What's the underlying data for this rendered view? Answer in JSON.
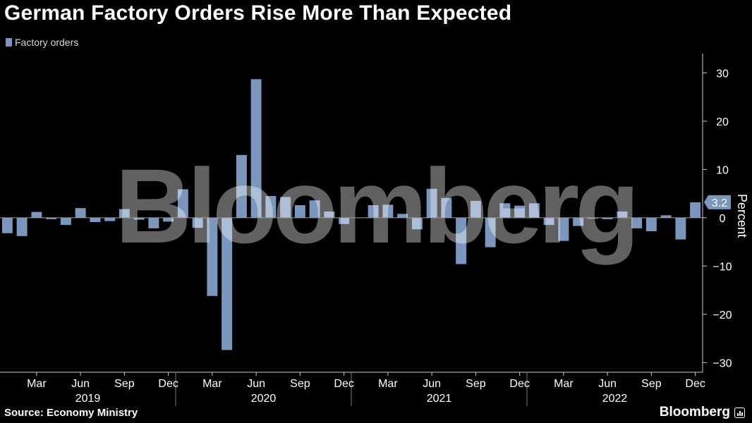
{
  "title": "German Factory Orders Rise More Than Expected",
  "legend_label": "Factory orders",
  "source": "Source: Economy Ministry",
  "brand": "Bloomberg",
  "watermark": "Bloomberg",
  "colors": {
    "bar": "#7b97bd",
    "background": "#000000",
    "axis": "#cccccc",
    "text": "#ffffff"
  },
  "chart_data": {
    "type": "bar",
    "title": "German Factory Orders Rise More Than Expected",
    "ylabel": "Percent",
    "ylim": [
      -32,
      34
    ],
    "yticks": [
      30,
      20,
      10,
      0,
      -10,
      -20,
      -30
    ],
    "series": [
      {
        "name": "Factory orders",
        "values": [
          -3.2,
          -3.8,
          1.2,
          -0.3,
          -1.5,
          2.0,
          -0.9,
          -0.7,
          1.8,
          -0.4,
          -2.2,
          -0.8,
          5.9,
          -2.1,
          -16.2,
          -27.4,
          13.0,
          28.7,
          4.5,
          4.3,
          2.6,
          3.6,
          1.3,
          -1.3,
          0.0,
          2.6,
          2.7,
          0.8,
          -2.4,
          6.0,
          4.1,
          -9.6,
          3.5,
          -6.1,
          3.0,
          2.5,
          3.0,
          -1.5,
          -4.8,
          -1.7,
          -0.2,
          -0.3,
          1.3,
          -2.2,
          -2.8,
          0.5,
          -4.5,
          3.2
        ],
        "last_value_label": "3.2"
      }
    ],
    "month_labels": [
      "Mar",
      "Jun",
      "Sep",
      "Dec",
      "Mar",
      "Jun",
      "Sep",
      "Dec",
      "Mar",
      "Jun",
      "Sep",
      "Dec",
      "Mar",
      "Jun",
      "Sep",
      "Dec"
    ],
    "month_label_indices": [
      2,
      5,
      8,
      11,
      14,
      17,
      20,
      23,
      26,
      29,
      32,
      35,
      38,
      41,
      44,
      47
    ],
    "years": [
      "2019",
      "2020",
      "2021",
      "2022"
    ]
  }
}
